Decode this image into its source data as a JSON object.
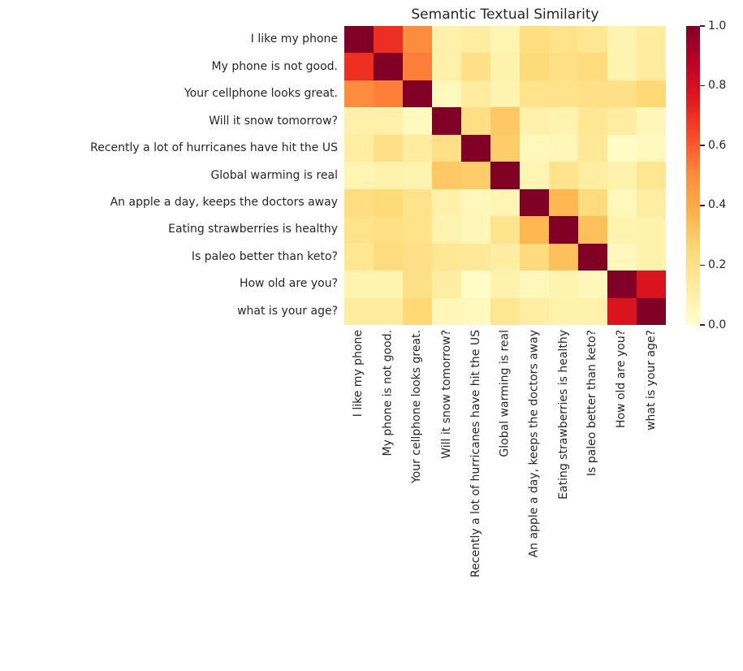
{
  "figure": {
    "background": "#ffffff",
    "text_color": "#262626"
  },
  "chart_data": {
    "type": "heatmap",
    "title": "Semantic Textual Similarity",
    "labels": [
      "I like my phone",
      "My phone is not good.",
      "Your cellphone looks great.",
      "Will it snow tomorrow?",
      "Recently a lot of hurricanes have hit the US",
      "Global warming is real",
      "An apple a day, keeps the doctors away",
      "Eating strawberries is healthy",
      "Is paleo better than keto?",
      "How old are you?",
      "what is your age?"
    ],
    "x_labels_rotation_deg": 90,
    "matrix": [
      [
        1.0,
        0.7,
        0.5,
        0.1,
        0.12,
        0.07,
        0.22,
        0.19,
        0.17,
        0.08,
        0.13
      ],
      [
        0.7,
        1.0,
        0.53,
        0.1,
        0.2,
        0.09,
        0.24,
        0.21,
        0.23,
        0.08,
        0.13
      ],
      [
        0.5,
        0.53,
        1.0,
        0.04,
        0.13,
        0.08,
        0.19,
        0.19,
        0.2,
        0.2,
        0.25
      ],
      [
        0.1,
        0.1,
        0.04,
        1.0,
        0.21,
        0.3,
        0.1,
        0.08,
        0.16,
        0.12,
        0.06
      ],
      [
        0.12,
        0.2,
        0.13,
        0.21,
        1.0,
        0.29,
        0.05,
        0.06,
        0.15,
        0.02,
        0.04
      ],
      [
        0.07,
        0.09,
        0.08,
        0.3,
        0.29,
        1.0,
        0.07,
        0.18,
        0.12,
        0.09,
        0.17
      ],
      [
        0.22,
        0.24,
        0.19,
        0.1,
        0.05,
        0.07,
        1.0,
        0.36,
        0.23,
        0.05,
        0.12
      ],
      [
        0.19,
        0.21,
        0.19,
        0.08,
        0.06,
        0.18,
        0.36,
        1.0,
        0.33,
        0.08,
        0.09
      ],
      [
        0.17,
        0.23,
        0.2,
        0.16,
        0.15,
        0.12,
        0.23,
        0.33,
        1.0,
        0.05,
        0.09
      ],
      [
        0.08,
        0.08,
        0.2,
        0.12,
        0.02,
        0.09,
        0.05,
        0.08,
        0.05,
        1.0,
        0.78
      ],
      [
        0.13,
        0.13,
        0.25,
        0.06,
        0.04,
        0.17,
        0.12,
        0.09,
        0.09,
        0.78,
        1.0
      ]
    ],
    "vmin": 0.0,
    "vmax": 1.0,
    "colormap": "YlOrRd",
    "colormap_stops": [
      [
        0.0,
        "#ffffcc"
      ],
      [
        0.125,
        "#ffeda0"
      ],
      [
        0.25,
        "#fed976"
      ],
      [
        0.375,
        "#feb24c"
      ],
      [
        0.5,
        "#fd8d3c"
      ],
      [
        0.625,
        "#fc4e2a"
      ],
      [
        0.75,
        "#e31a1c"
      ],
      [
        0.875,
        "#bd0026"
      ],
      [
        1.0,
        "#800026"
      ]
    ],
    "colorbar": {
      "position": "right",
      "ticks": [
        0.0,
        0.2,
        0.4,
        0.6,
        0.8,
        1.0
      ],
      "tick_labels": [
        "0.0",
        "0.2",
        "0.4",
        "0.6",
        "0.8",
        "1.0"
      ]
    },
    "legend": "none",
    "grid": "off"
  }
}
